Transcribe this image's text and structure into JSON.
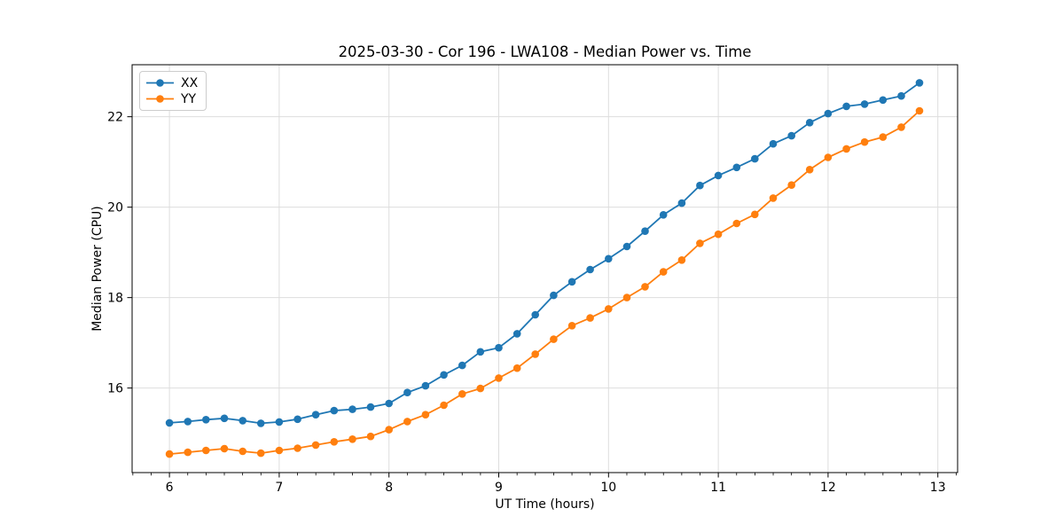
{
  "chart_data": {
    "type": "line",
    "title": "2025-03-30 - Cor 196 - LWA108 - Median Power vs. Time",
    "xlabel": "UT Time (hours)",
    "ylabel": "Median Power (CPU)",
    "xlim": [
      5.66,
      13.18
    ],
    "ylim": [
      14.13,
      23.15
    ],
    "x_major_ticks": [
      6,
      7,
      8,
      9,
      10,
      11,
      12,
      13
    ],
    "x_minor_step": 0.16667,
    "y_major_ticks": [
      16,
      18,
      20,
      22
    ],
    "grid": true,
    "grid_color": "#dddddd",
    "spine_color": "#000000",
    "text_color": "#000000",
    "legend_position": "upper-left",
    "marker": "circle",
    "x": [
      6.0,
      6.167,
      6.333,
      6.5,
      6.667,
      6.833,
      7.0,
      7.167,
      7.333,
      7.5,
      7.667,
      7.833,
      8.0,
      8.167,
      8.333,
      8.5,
      8.667,
      8.833,
      9.0,
      9.167,
      9.333,
      9.5,
      9.667,
      9.833,
      10.0,
      10.167,
      10.333,
      10.5,
      10.667,
      10.833,
      11.0,
      11.167,
      11.333,
      11.5,
      11.667,
      11.833,
      12.0,
      12.167,
      12.333,
      12.5,
      12.667,
      12.833
    ],
    "series": [
      {
        "name": "XX",
        "color": "#1f77b4",
        "values": [
          15.23,
          15.26,
          15.3,
          15.33,
          15.28,
          15.22,
          15.25,
          15.31,
          15.41,
          15.5,
          15.53,
          15.58,
          15.66,
          15.9,
          16.05,
          16.29,
          16.5,
          16.8,
          16.89,
          17.2,
          17.62,
          18.05,
          18.35,
          18.62,
          18.86,
          19.13,
          19.47,
          19.83,
          20.09,
          20.48,
          20.7,
          20.88,
          21.07,
          21.4,
          21.58,
          21.87,
          22.07,
          22.23,
          22.28,
          22.37,
          22.46,
          22.75
        ]
      },
      {
        "name": "YY",
        "color": "#ff7f0e",
        "values": [
          14.54,
          14.58,
          14.62,
          14.66,
          14.6,
          14.56,
          14.62,
          14.67,
          14.74,
          14.81,
          14.87,
          14.93,
          15.08,
          15.26,
          15.41,
          15.62,
          15.87,
          15.99,
          16.22,
          16.44,
          16.75,
          17.08,
          17.38,
          17.55,
          17.75,
          18.0,
          18.24,
          18.57,
          18.83,
          19.2,
          19.4,
          19.64,
          19.84,
          20.2,
          20.49,
          20.83,
          21.1,
          21.29,
          21.44,
          21.55,
          21.77,
          22.13
        ]
      }
    ]
  }
}
